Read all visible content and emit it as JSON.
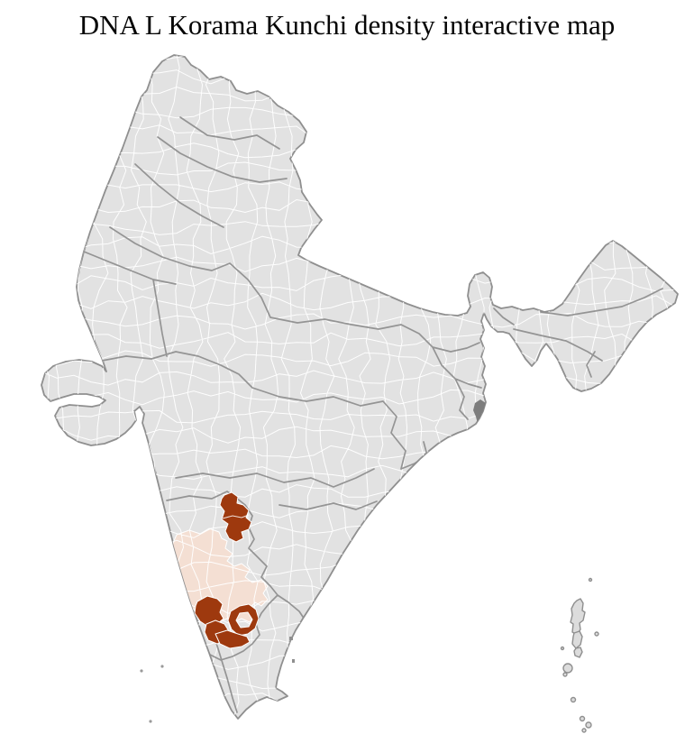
{
  "title": "DNA L Korama Kunchi density interactive map",
  "map": {
    "name": "india-district-density-choropleth",
    "colors": {
      "background": "#ffffff",
      "land": "#e2e2e2",
      "district_border": "#ffffff",
      "state_border": "#8f8f8f",
      "outline": "#8f8f8f",
      "high_density": "#9e390e",
      "low_density": "#f4dfd3",
      "delta_marsh": "#7d7d7d",
      "island": "#dcdcdc"
    },
    "regions": [
      {
        "id": "north-karnataka-district",
        "density": "high",
        "color": "#9e390e"
      },
      {
        "id": "central-karnataka-zone",
        "density": "low",
        "color": "#f4dfd3"
      },
      {
        "id": "south-karnataka-cluster",
        "density": "high",
        "color": "#9e390e"
      }
    ],
    "features": [
      "sundarbans-delta",
      "andaman-nicobar-islands",
      "lakshadweep-islands"
    ]
  }
}
